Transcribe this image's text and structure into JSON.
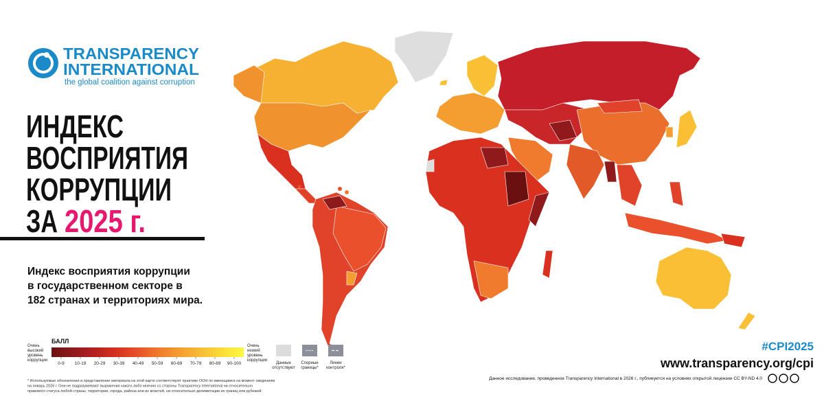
{
  "logo": {
    "name_line1": "TRANSPARENCY",
    "name_line2": "INTERNATIONAL",
    "tagline": "the global coalition against corruption"
  },
  "title": {
    "lines": [
      "ИНДЕКС",
      "ВОСПРИЯТИЯ",
      "КОРРУПЦИИ"
    ],
    "prefix": "ЗА",
    "year": "2025 г."
  },
  "description": {
    "lines": [
      "Индекс восприятия коррупции",
      "в государственном секторе в",
      "182 странах и территориях мира."
    ]
  },
  "legend": {
    "title": "БАЛЛ",
    "low_label": [
      "Очень",
      "высокий",
      "уровень",
      "коррупции"
    ],
    "high_label": [
      "Очень",
      "низкий",
      "уровень",
      "коррупции"
    ],
    "bins": [
      {
        "label": "0-9",
        "color": "#6b1010"
      },
      {
        "label": "10-19",
        "color": "#8e1a1c"
      },
      {
        "label": "20-29",
        "color": "#b3211e"
      },
      {
        "label": "30-39",
        "color": "#d5301f"
      },
      {
        "label": "40-49",
        "color": "#e74f29"
      },
      {
        "label": "50-59",
        "color": "#ef7a2c"
      },
      {
        "label": "60-69",
        "color": "#f49d31"
      },
      {
        "label": "70-79",
        "color": "#f8bd36"
      },
      {
        "label": "80-89",
        "color": "#fbdd39"
      },
      {
        "label": "90-100",
        "color": "#fdf841"
      }
    ],
    "extra": [
      {
        "label": [
          "Данные",
          "отсутствуют"
        ],
        "color": "#dcdcdc"
      },
      {
        "label": [
          "Спорные",
          "границы*"
        ],
        "color": "#8a8f99"
      },
      {
        "label": [
          "Линии",
          "контроля*"
        ],
        "color": "#8a8f99"
      }
    ]
  },
  "footer": {
    "hashtag": "#CPI2025",
    "url": "www.transparency.org/cpi",
    "license": "Данное исследование, проведенное Transparency International в 2026 г., публикуется на условиях открытой лицензии CC BY-ND 4.0",
    "footnote": [
      "* Используемые обозначения и представление материала на этой карте соответствуют практике ООН по имеющимся на момент сведениям",
      "на январь 2026 г. Они не подразумевают выражения какого-либо мнения со стороны Transparency International ни относительно",
      "правового статуса любой страны, территории, города, района или их властей, ни относительно делимитации их границ или рубежей."
    ]
  }
}
